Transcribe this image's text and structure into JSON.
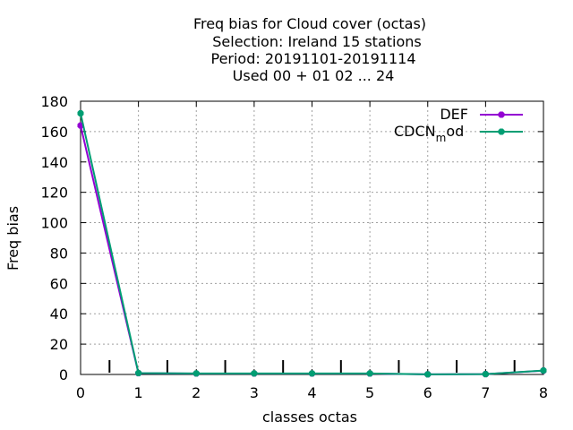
{
  "chart_data": {
    "type": "line",
    "title_lines": [
      "Freq bias  for Cloud cover (octas)",
      "Selection: Ireland      15 stations",
      "Period: 20191101-20191114",
      "Used  00 + 01 02 ... 24"
    ],
    "xlabel": "classes octas",
    "ylabel": "Freq bias",
    "x": [
      0,
      1,
      2,
      3,
      4,
      5,
      6,
      7,
      8
    ],
    "xlim": [
      0,
      8
    ],
    "ylim": [
      0,
      180
    ],
    "x_ticks": [
      0,
      1,
      2,
      3,
      4,
      5,
      6,
      7,
      8
    ],
    "y_ticks": [
      0,
      20,
      40,
      60,
      80,
      100,
      120,
      140,
      160,
      180
    ],
    "grid": true,
    "legend_position": "top-right",
    "series": [
      {
        "name": "DEF",
        "color": "#9400d3",
        "values": [
          164,
          0.8,
          0.6,
          0.6,
          0.6,
          0.6,
          0.1,
          0.2,
          2.5
        ]
      },
      {
        "name": "CDCN_mod",
        "color": "#009e73",
        "values": [
          172,
          0.9,
          0.7,
          0.7,
          0.7,
          0.7,
          0.1,
          0.2,
          2.6
        ]
      }
    ],
    "legend": {
      "def_label": "DEF",
      "cdcn_main": "CDCN",
      "cdcn_sub": "m",
      "cdcn_tail": "od"
    }
  }
}
